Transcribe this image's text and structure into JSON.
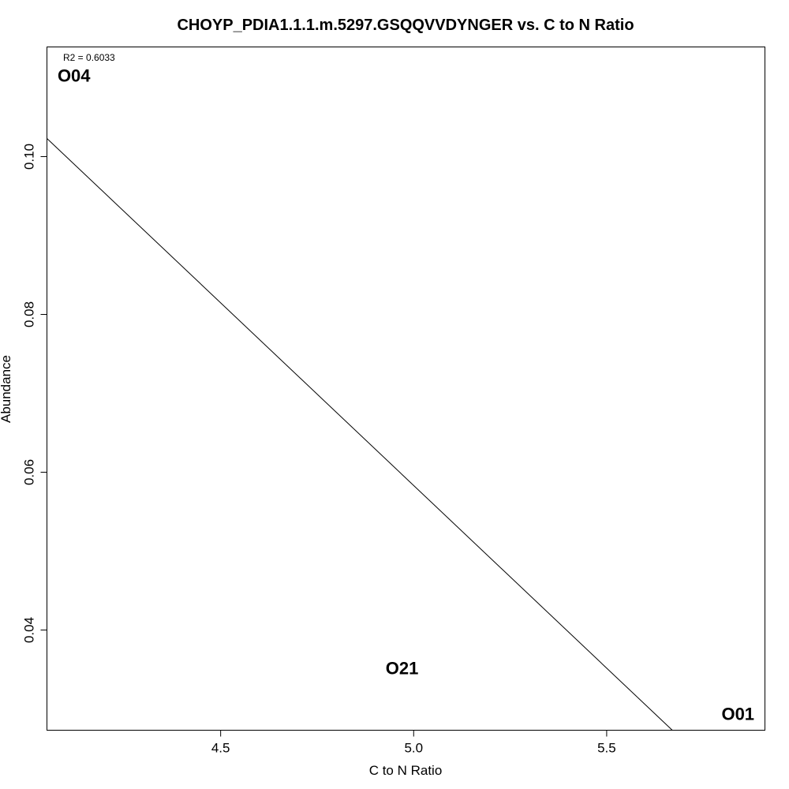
{
  "chart_data": {
    "type": "scatter",
    "title": "CHOYP_PDIA1.1.1.m.5297.GSQQVVDYNGER vs. C to N Ratio",
    "xlabel": "C to N Ratio",
    "ylabel": "Abundance",
    "xlim": [
      4.05,
      5.91
    ],
    "ylim": [
      0.0273,
      0.1139
    ],
    "x_ticks": [
      4.5,
      5.0,
      5.5
    ],
    "x_tick_labels": [
      "4.5",
      "5.0",
      "5.5"
    ],
    "y_ticks": [
      0.04,
      0.06,
      0.08,
      0.1
    ],
    "y_tick_labels": [
      "0.04",
      "0.06",
      "0.08",
      "0.10"
    ],
    "points": [
      {
        "label": "O04",
        "x": 4.12,
        "y": 0.1103
      },
      {
        "label": "O21",
        "x": 4.97,
        "y": 0.0352
      },
      {
        "label": "O01",
        "x": 5.84,
        "y": 0.0294
      }
    ],
    "regression_line": {
      "x": [
        4.05,
        5.67
      ],
      "y": [
        0.1023,
        0.0273
      ]
    },
    "r2_text": "R2 = 0.6033",
    "grid": false,
    "legend": "none"
  }
}
